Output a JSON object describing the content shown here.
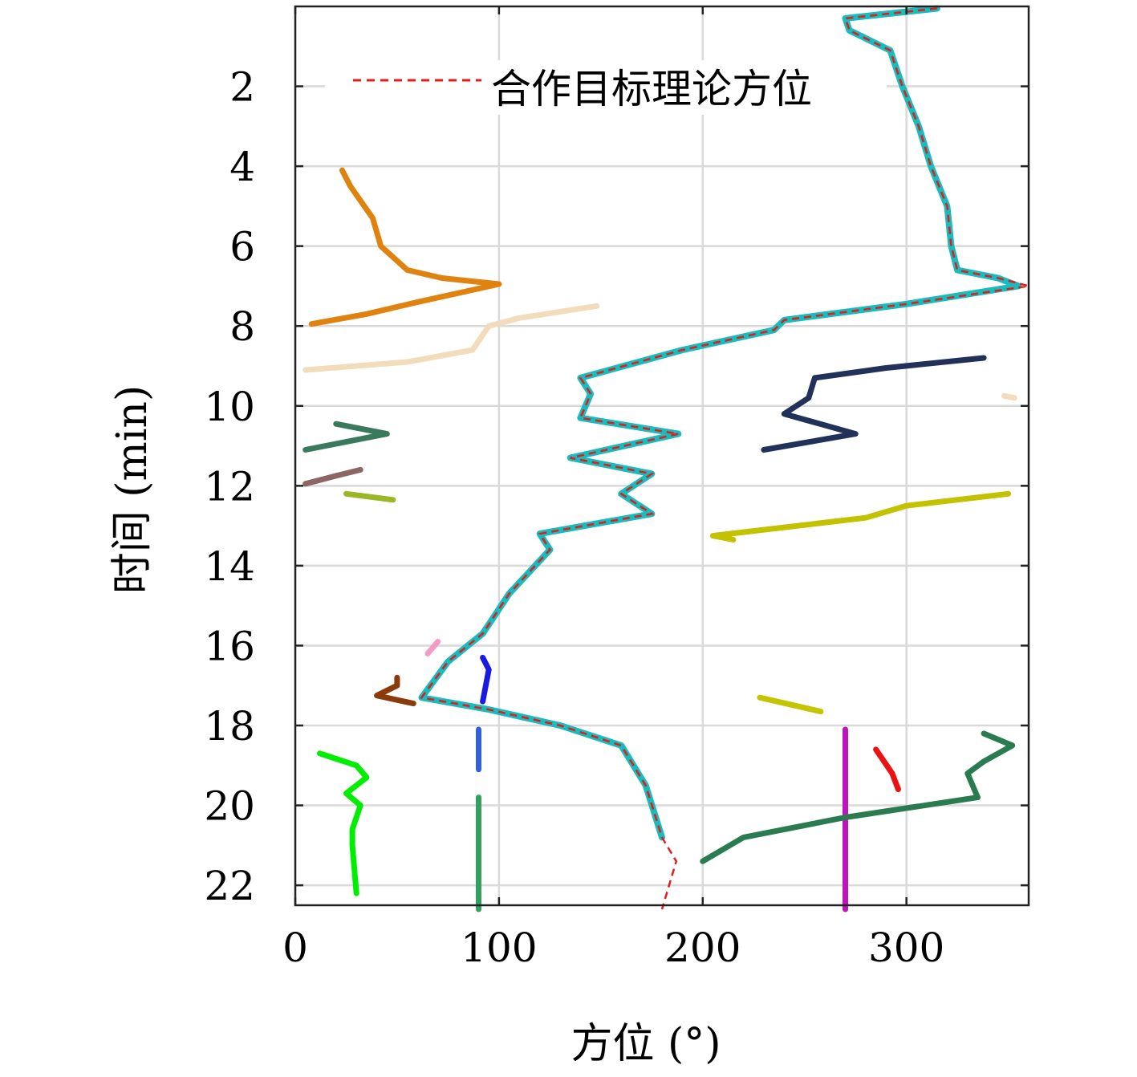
{
  "chart_data": {
    "type": "scatter",
    "xlabel": "方位 (°)",
    "ylabel": "时间 (min)",
    "xlim": [
      0,
      360
    ],
    "ylim": [
      22.5,
      0
    ],
    "y_axis_reversed": true,
    "x_ticks": [
      0,
      100,
      200,
      300
    ],
    "y_ticks": [
      2,
      4,
      6,
      8,
      10,
      12,
      14,
      16,
      18,
      20,
      22
    ],
    "grid": true,
    "legend": {
      "position": "top",
      "entries": [
        "合作目标理论方位"
      ]
    },
    "reference_line": {
      "name": "合作目标理论方位",
      "color": "#e41a1c",
      "style": "dashed",
      "points": [
        [
          315,
          0.05
        ],
        [
          270,
          0.3
        ],
        [
          272,
          0.6
        ],
        [
          292,
          1.1
        ],
        [
          298,
          2.0
        ],
        [
          306,
          3.0
        ],
        [
          312,
          4.0
        ],
        [
          320,
          5.0
        ],
        [
          322,
          6.0
        ],
        [
          325,
          6.6
        ],
        [
          345,
          6.8
        ],
        [
          360,
          7.0
        ],
        [
          300,
          7.45
        ],
        [
          240,
          7.85
        ],
        [
          235,
          8.1
        ],
        [
          190,
          8.6
        ],
        [
          140,
          9.3
        ],
        [
          145,
          9.7
        ],
        [
          140,
          10.3
        ],
        [
          188,
          10.7
        ],
        [
          135,
          11.3
        ],
        [
          175,
          11.7
        ],
        [
          160,
          12.2
        ],
        [
          175,
          12.7
        ],
        [
          120,
          13.2
        ],
        [
          125,
          13.6
        ],
        [
          105,
          14.7
        ],
        [
          92,
          15.7
        ],
        [
          75,
          16.4
        ],
        [
          62,
          17.3
        ],
        [
          95,
          17.6
        ],
        [
          130,
          18.0
        ],
        [
          160,
          18.5
        ],
        [
          172,
          19.5
        ],
        [
          180,
          20.8
        ],
        [
          187,
          21.4
        ],
        [
          180,
          22.6
        ]
      ]
    },
    "series": [
      {
        "color": "#18bcbc",
        "style": "thick",
        "points": [
          [
            315,
            0.05
          ],
          [
            270,
            0.3
          ],
          [
            272,
            0.6
          ],
          [
            292,
            1.1
          ],
          [
            298,
            2.0
          ],
          [
            306,
            3.0
          ],
          [
            312,
            4.0
          ],
          [
            320,
            5.0
          ],
          [
            322,
            6.0
          ],
          [
            325,
            6.6
          ],
          [
            345,
            6.8
          ],
          [
            355,
            7.0
          ],
          [
            300,
            7.45
          ],
          [
            240,
            7.85
          ],
          [
            235,
            8.1
          ],
          [
            190,
            8.6
          ],
          [
            140,
            9.3
          ],
          [
            145,
            9.7
          ],
          [
            140,
            10.3
          ],
          [
            188,
            10.7
          ],
          [
            135,
            11.3
          ],
          [
            175,
            11.7
          ],
          [
            160,
            12.2
          ],
          [
            175,
            12.7
          ],
          [
            120,
            13.2
          ],
          [
            125,
            13.6
          ],
          [
            105,
            14.7
          ],
          [
            92,
            15.7
          ],
          [
            75,
            16.4
          ],
          [
            62,
            17.3
          ],
          [
            95,
            17.6
          ],
          [
            130,
            18.0
          ],
          [
            160,
            18.5
          ],
          [
            172,
            19.5
          ],
          [
            180,
            20.8
          ]
        ]
      },
      {
        "color": "#e0820f",
        "points": [
          [
            23,
            4.1
          ],
          [
            27,
            4.5
          ],
          [
            38,
            5.3
          ],
          [
            42,
            6.0
          ],
          [
            55,
            6.6
          ],
          [
            72,
            6.8
          ],
          [
            100,
            6.95
          ],
          [
            60,
            7.4
          ],
          [
            35,
            7.7
          ],
          [
            8,
            7.95
          ]
        ]
      },
      {
        "color": "#f2dcbc",
        "points": [
          [
            148,
            7.5
          ],
          [
            110,
            7.8
          ],
          [
            95,
            8.0
          ],
          [
            87,
            8.6
          ],
          [
            55,
            8.9
          ],
          [
            5,
            9.1
          ]
        ]
      },
      {
        "color": "#22315a",
        "points": [
          [
            338,
            8.8
          ],
          [
            290,
            9.05
          ],
          [
            255,
            9.3
          ],
          [
            252,
            9.8
          ],
          [
            240,
            10.2
          ],
          [
            275,
            10.7
          ],
          [
            230,
            11.1
          ]
        ]
      },
      {
        "color": "#3a7a5c",
        "points": [
          [
            20,
            10.45
          ],
          [
            45,
            10.7
          ],
          [
            5,
            11.1
          ]
        ]
      },
      {
        "color": "#8c6565",
        "points": [
          [
            32,
            11.6
          ],
          [
            20,
            11.75
          ],
          [
            5,
            11.95
          ]
        ]
      },
      {
        "color": "#9ab826",
        "points": [
          [
            25,
            12.2
          ],
          [
            48,
            12.35
          ]
        ]
      },
      {
        "color": "#c2c200",
        "points": [
          [
            350,
            12.2
          ],
          [
            300,
            12.5
          ],
          [
            280,
            12.8
          ],
          [
            230,
            13.1
          ],
          [
            205,
            13.25
          ],
          [
            215,
            13.35
          ]
        ]
      },
      {
        "color": "#f39bc6",
        "points": [
          [
            65,
            16.2
          ],
          [
            70,
            15.9
          ]
        ]
      },
      {
        "color": "#1a1ae0",
        "points": [
          [
            92,
            16.3
          ],
          [
            95,
            16.6
          ],
          [
            92,
            17.4
          ]
        ]
      },
      {
        "color": "#8b3a0a",
        "points": [
          [
            50,
            16.8
          ],
          [
            50,
            17.0
          ],
          [
            40,
            17.25
          ],
          [
            58,
            17.45
          ]
        ]
      },
      {
        "color": "#c4c400",
        "points": [
          [
            228,
            17.3
          ],
          [
            258,
            17.65
          ]
        ]
      },
      {
        "color": "#00ee00",
        "points": [
          [
            12,
            18.7
          ],
          [
            30,
            19.0
          ],
          [
            35,
            19.3
          ],
          [
            25,
            19.7
          ],
          [
            32,
            20.0
          ],
          [
            28,
            20.6
          ],
          [
            28,
            21.0
          ],
          [
            30,
            22.2
          ]
        ]
      },
      {
        "color": "#3060e0",
        "points": [
          [
            90,
            18.1
          ],
          [
            90,
            19.1
          ]
        ]
      },
      {
        "color": "#33a060",
        "points": [
          [
            90,
            19.8
          ],
          [
            90,
            22.6
          ]
        ]
      },
      {
        "color": "#bb16bb",
        "points": [
          [
            270,
            18.1
          ],
          [
            270,
            22.6
          ]
        ]
      },
      {
        "color": "#ee1111",
        "points": [
          [
            285,
            18.6
          ],
          [
            293,
            19.2
          ],
          [
            296,
            19.6
          ]
        ]
      },
      {
        "color": "#2a7c50",
        "points": [
          [
            338,
            18.2
          ],
          [
            352,
            18.5
          ],
          [
            338,
            18.9
          ],
          [
            330,
            19.2
          ],
          [
            335,
            19.8
          ],
          [
            270,
            20.3
          ],
          [
            220,
            20.8
          ],
          [
            200,
            21.4
          ]
        ]
      },
      {
        "color": "#f2dcbc",
        "points": [
          [
            348,
            9.75
          ],
          [
            353,
            9.8
          ]
        ]
      }
    ]
  }
}
